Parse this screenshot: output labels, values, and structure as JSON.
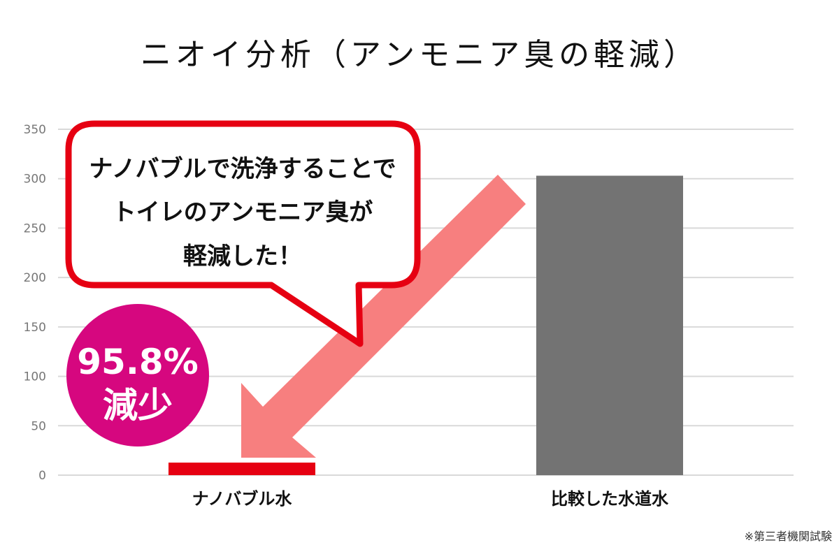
{
  "chart_data": {
    "type": "bar",
    "title": "ニオイ分析（アンモニア臭の軽減）",
    "categories": [
      "ナノバブル水",
      "比較した水道水"
    ],
    "values": [
      12.7,
      303
    ],
    "bar_colors": [
      "#e60012",
      "#737373"
    ],
    "xlabel": "",
    "ylabel": "",
    "ylim": [
      0,
      350
    ],
    "yticks": [
      0,
      50,
      100,
      150,
      200,
      250,
      300,
      350
    ],
    "grid": true,
    "legend": "none",
    "annotations": {
      "callout_lines": [
        "ナノバブルで洗浄することで",
        "トイレのアンモニア臭が",
        "軽減した！"
      ],
      "badge_value": "95.8%",
      "badge_label": "減少",
      "callout_color": "#e60012",
      "badge_color": "#d6077f",
      "arrow_color": "#f77f7f"
    },
    "footnote": "※第三者機関試験"
  }
}
